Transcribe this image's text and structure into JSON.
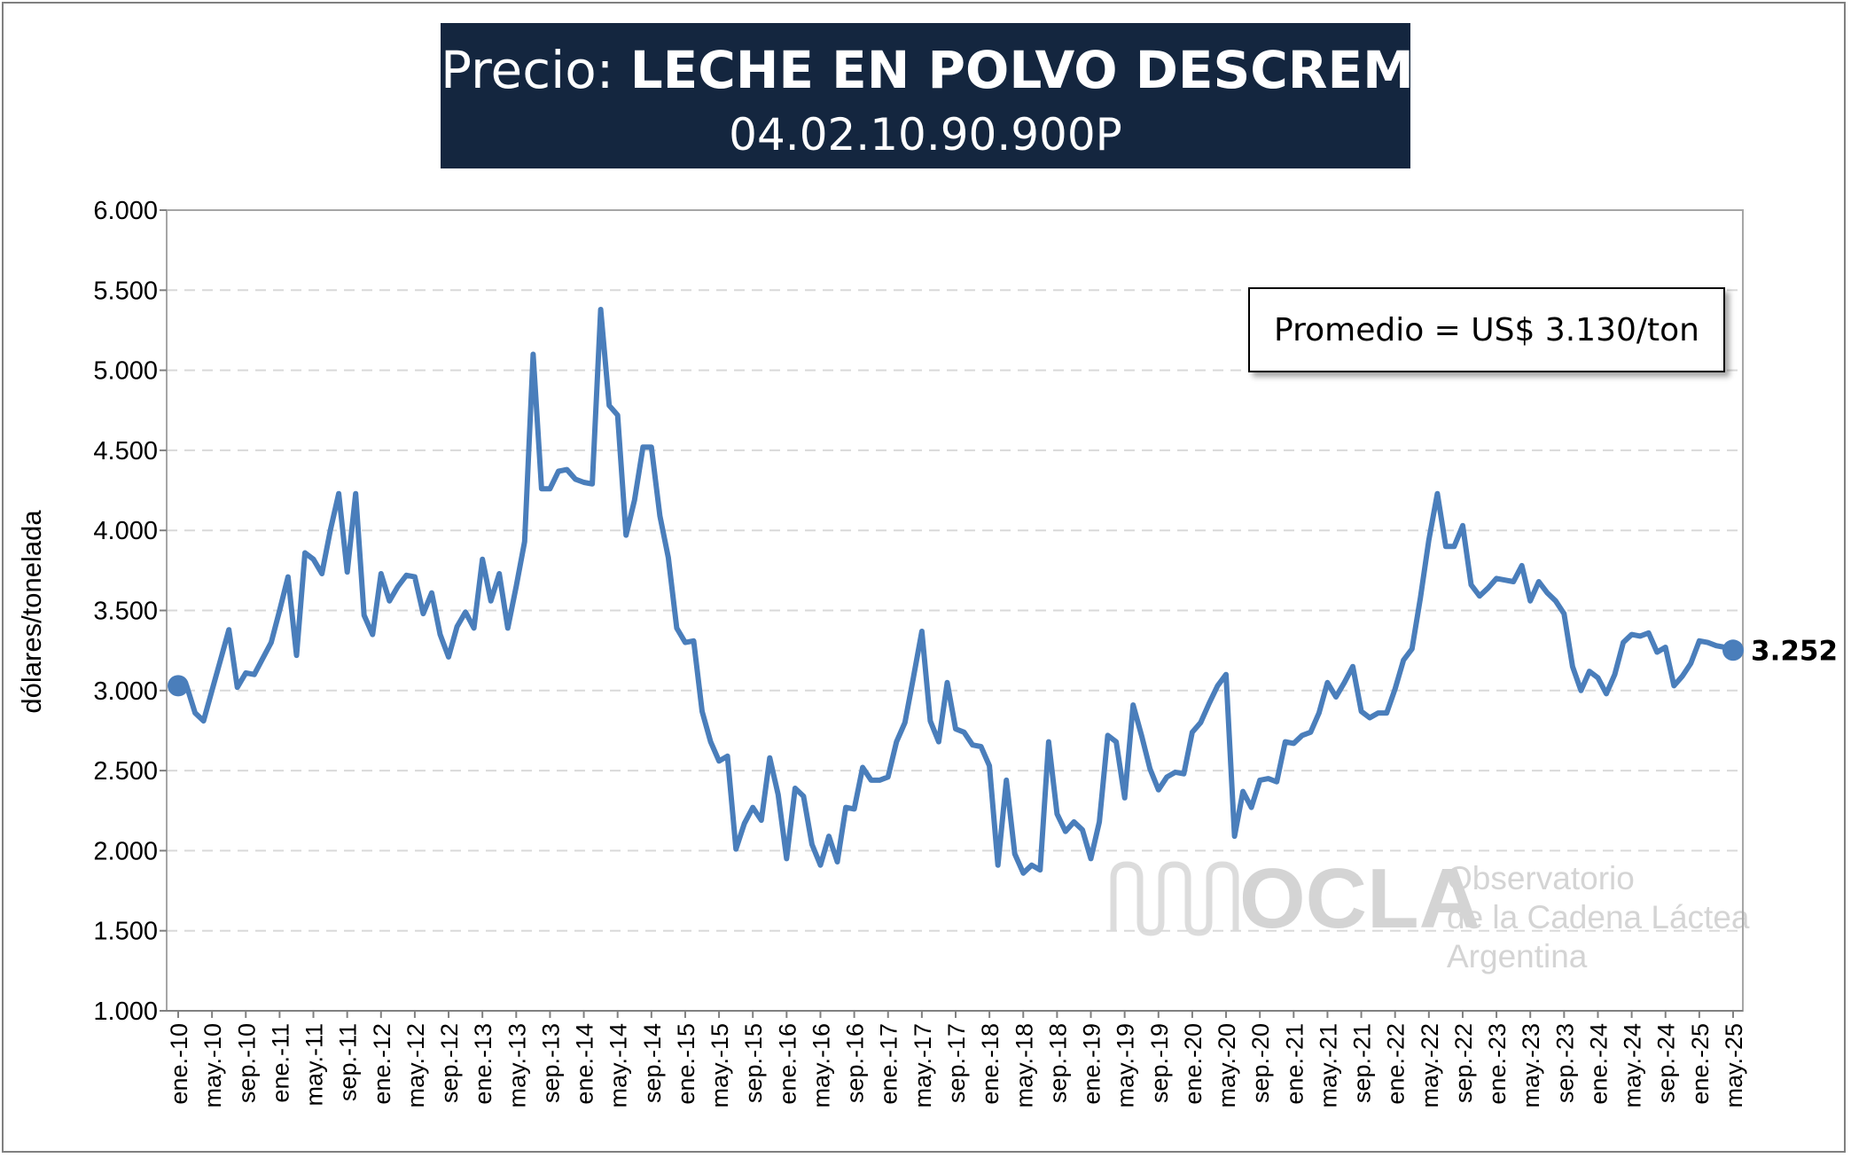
{
  "title": {
    "prefix": "Precio: ",
    "main": "LECHE EN POLVO DESCREMADA",
    "code": "04.02.10.90.900P"
  },
  "average_box": "Promedio = US$ 3.130/ton",
  "logo": {
    "brand": "OCLA",
    "line1": "Observatorio",
    "line2": "de la Cadena Láctea",
    "line3": "Argentina"
  },
  "colors": {
    "line": "#4a7ebb",
    "title_bg": "#14263f",
    "grid": "#d9d9d9"
  },
  "chart_data": {
    "type": "line",
    "ylabel": "dólares/tonelada",
    "ylim": [
      1000,
      6000
    ],
    "yticks": [
      "1.000",
      "1.500",
      "2.000",
      "2.500",
      "3.000",
      "3.500",
      "4.000",
      "4.500",
      "5.000",
      "5.500",
      "6.000"
    ],
    "ytick_values": [
      1000,
      1500,
      2000,
      2500,
      3000,
      3500,
      4000,
      4500,
      5000,
      5500,
      6000
    ],
    "x_tick_labels": [
      "ene.-10",
      "may.-10",
      "sep.-10",
      "ene.-11",
      "may.-11",
      "sep.-11",
      "ene.-12",
      "may.-12",
      "sep.-12",
      "ene.-13",
      "may.-13",
      "sep.-13",
      "ene.-14",
      "may.-14",
      "sep.-14",
      "ene.-15",
      "may.-15",
      "sep.-15",
      "ene.-16",
      "may.-16",
      "sep.-16",
      "ene.-17",
      "may.-17",
      "sep.-17",
      "ene.-18",
      "may.-18",
      "sep.-18",
      "ene.-19",
      "may.-19",
      "sep.-19",
      "ene.-20",
      "may.-20",
      "sep.-20",
      "ene.-21",
      "may.-21",
      "sep.-21",
      "ene.-22",
      "may.-22",
      "sep.-22",
      "ene.-23",
      "may.-23",
      "sep.-23",
      "ene.-24",
      "may.-24",
      "sep.-24",
      "ene.-25",
      "may.-25"
    ],
    "x_start": "ene.-10",
    "x_end": "may.-25",
    "grid": "horizontal dashed",
    "end_label": "3.252",
    "series": [
      {
        "values": [
          3030,
          3030,
          2860,
          2810,
          3000,
          3190,
          3380,
          3020,
          3110,
          3100,
          3200,
          3300,
          3500,
          3710,
          3220,
          3860,
          3820,
          3730,
          4000,
          4230,
          3740,
          4230,
          3470,
          3350,
          3730,
          3560,
          3650,
          3720,
          3710,
          3480,
          3610,
          3350,
          3210,
          3400,
          3490,
          3390,
          3820,
          3560,
          3730,
          3390,
          3650,
          3930,
          5100,
          4260,
          4260,
          4370,
          4380,
          4320,
          4300,
          4290,
          5380,
          4780,
          4720,
          3970,
          4190,
          4520,
          4520,
          4090,
          3830,
          3390,
          3300,
          3310,
          2870,
          2680,
          2560,
          2590,
          2010,
          2170,
          2270,
          2190,
          2580,
          2350,
          1950,
          2390,
          2340,
          2040,
          1910,
          2090,
          1930,
          2270,
          2260,
          2520,
          2440,
          2440,
          2460,
          2680,
          2800,
          3080,
          3370,
          2810,
          2680,
          3050,
          2760,
          2740,
          2660,
          2650,
          2530,
          1910,
          2440,
          1980,
          1860,
          1910,
          1880,
          2680,
          2230,
          2120,
          2180,
          2130,
          1950,
          2180,
          2720,
          2680,
          2330,
          2910,
          2720,
          2510,
          2380,
          2460,
          2490,
          2480,
          2740,
          2800,
          2920,
          3030,
          3100,
          2090,
          2370,
          2270,
          2440,
          2450,
          2430,
          2680,
          2670,
          2720,
          2740,
          2860,
          3050,
          2960,
          3050,
          3150,
          2870,
          2830,
          2860,
          2860,
          3010,
          3190,
          3260,
          3580,
          3940,
          4230,
          3900,
          3900,
          4030,
          3660,
          3590,
          3640,
          3700,
          3690,
          3680,
          3780,
          3560,
          3680,
          3610,
          3560,
          3480,
          3150,
          3000,
          3120,
          3080,
          2980,
          3100,
          3300,
          3350,
          3340,
          3360,
          3240,
          3270,
          3030,
          3090,
          3170,
          3310,
          3300,
          3280,
          3270,
          3252
        ]
      }
    ]
  }
}
